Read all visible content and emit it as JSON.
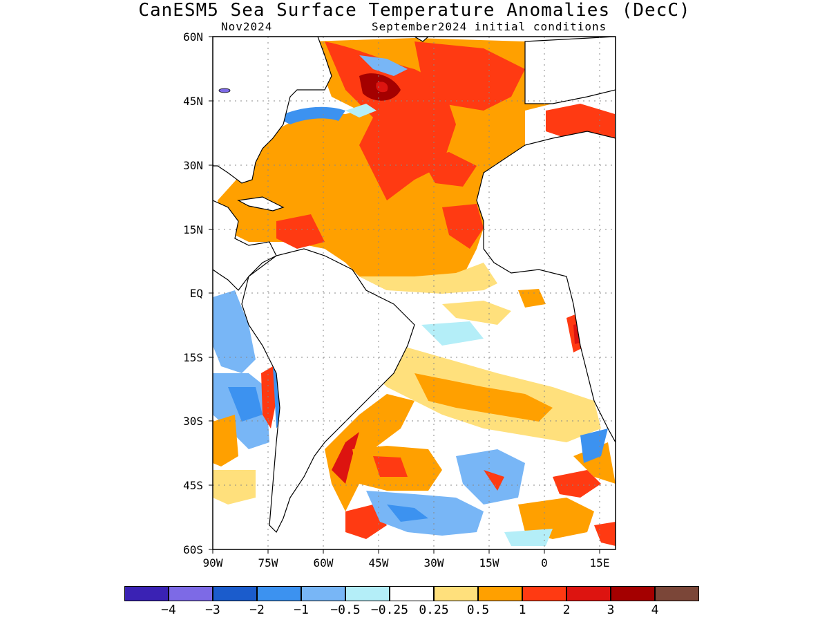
{
  "title": "CanESM5 Sea Surface Temperature Anomalies (DecC)",
  "subtitle_left": "Nov2024",
  "subtitle_right": "September2024 initial conditions",
  "lat_labels": [
    "60N",
    "45N",
    "30N",
    "15N",
    "EQ",
    "15S",
    "30S",
    "45S",
    "60S"
  ],
  "lon_labels": [
    "90W",
    "75W",
    "60W",
    "45W",
    "30W",
    "15W",
    "0",
    "15E"
  ],
  "colorbar": {
    "colors": [
      "#3a22b4",
      "#7d6ae6",
      "#1b5ccc",
      "#3c92f0",
      "#78b6f6",
      "#b4eef8",
      "#ffffff",
      "#ffe07c",
      "#ffa000",
      "#ff3a12",
      "#dd1410",
      "#a40000",
      "#7b4638"
    ],
    "labels": [
      "−4",
      "−3",
      "−2",
      "−1",
      "−0.5",
      "−0.25",
      "0.25",
      "0.5",
      "1",
      "2",
      "3",
      "4"
    ]
  }
}
